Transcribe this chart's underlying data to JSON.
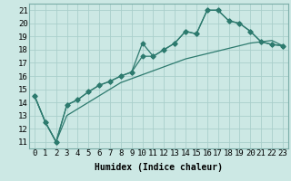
{
  "x_values": [
    0,
    1,
    2,
    3,
    4,
    5,
    6,
    7,
    8,
    9,
    10,
    11,
    12,
    13,
    14,
    15,
    16,
    17,
    18,
    19,
    20,
    21,
    22,
    23
  ],
  "line1": [
    14.5,
    12.5,
    11.0,
    13.8,
    14.2,
    14.8,
    15.3,
    15.6,
    16.0,
    16.3,
    18.5,
    17.5,
    18.0,
    18.5,
    19.4,
    19.2,
    21.0,
    21.0,
    20.2,
    20.0,
    19.4,
    18.6,
    18.4,
    18.3
  ],
  "line2": [
    14.5,
    12.5,
    11.0,
    13.8,
    14.2,
    14.8,
    15.3,
    15.6,
    16.0,
    16.3,
    17.5,
    17.5,
    18.0,
    18.5,
    19.4,
    19.2,
    21.0,
    21.0,
    20.2,
    20.0,
    19.4,
    18.6,
    18.4,
    18.3
  ],
  "line3": [
    14.5,
    12.5,
    11.0,
    13.0,
    13.5,
    14.0,
    14.5,
    15.0,
    15.5,
    15.8,
    16.1,
    16.4,
    16.7,
    17.0,
    17.3,
    17.5,
    17.7,
    17.9,
    18.1,
    18.3,
    18.5,
    18.6,
    18.7,
    18.3
  ],
  "line_color": "#2d7a6e",
  "bg_color": "#cce8e4",
  "grid_color": "#aacfcb",
  "xlabel": "Humidex (Indice chaleur)",
  "xlim": [
    -0.5,
    23.5
  ],
  "ylim": [
    10.5,
    21.5
  ],
  "yticks": [
    11,
    12,
    13,
    14,
    15,
    16,
    17,
    18,
    19,
    20,
    21
  ],
  "xticks": [
    0,
    1,
    2,
    3,
    4,
    5,
    6,
    7,
    8,
    9,
    10,
    11,
    12,
    13,
    14,
    15,
    16,
    17,
    18,
    19,
    20,
    21,
    22,
    23
  ],
  "font_size": 6.5,
  "marker": "D",
  "marker_size": 2.5,
  "lw": 0.9
}
